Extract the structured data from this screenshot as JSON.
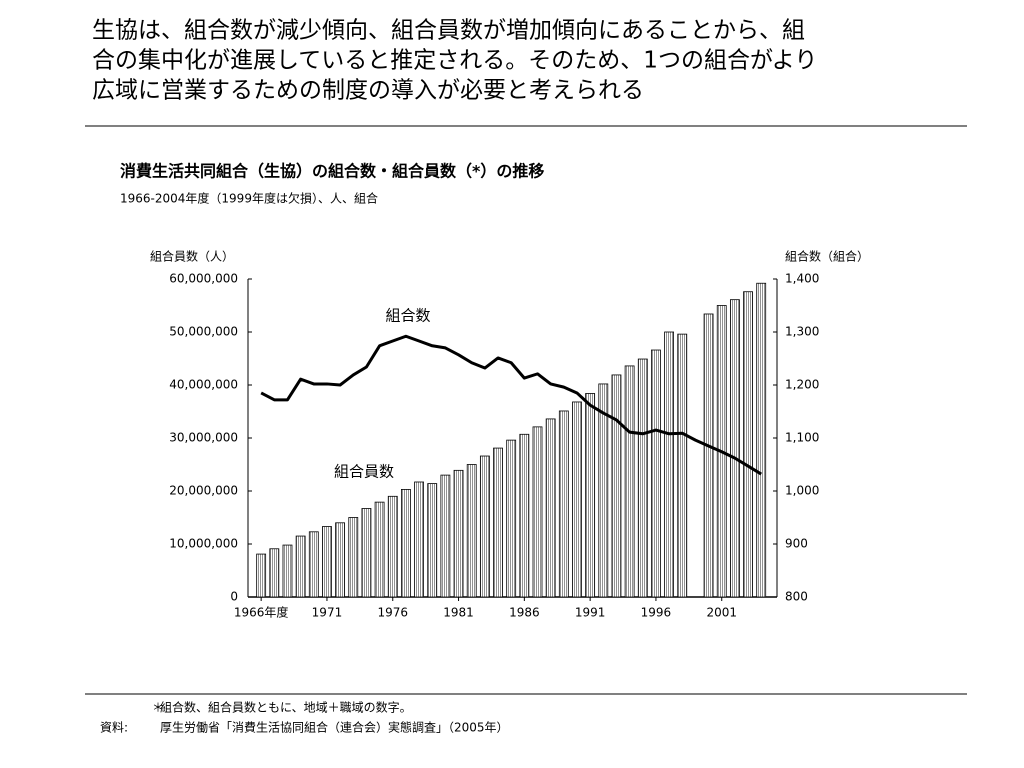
{
  "headline": [
    "生協は、組合数が減少傾向、組合員数が増加傾向にあることから、組",
    "合の集中化が進展していると推定される。そのため、1つの組合がより",
    "広域に営業するための制度の導入が必要と考えられる"
  ],
  "chart_data": {
    "type": "bar_line",
    "title": "消費生活共同組合（生協）の組合数・組合員数（*）の推移",
    "subtitle": "1966-2004年度（1999年度は欠損）、人、組合",
    "ylabel": "組合員数（人）",
    "y2label": "組合数（組合）",
    "x": [
      1966,
      1967,
      1968,
      1969,
      1970,
      1971,
      1972,
      1973,
      1974,
      1975,
      1976,
      1977,
      1978,
      1979,
      1980,
      1981,
      1982,
      1983,
      1984,
      1985,
      1986,
      1987,
      1988,
      1989,
      1990,
      1991,
      1992,
      1993,
      1994,
      1995,
      1996,
      1997,
      1998,
      1999,
      2000,
      2001,
      2002,
      2003,
      2004
    ],
    "xlim": [
      1965,
      2005.2
    ],
    "xticks": [
      {
        "value": 1966,
        "label": "1966年度"
      },
      1971,
      1976,
      1981,
      1986,
      1991,
      1996,
      2001
    ],
    "ylim": [
      0,
      60000000
    ],
    "yticks": [
      0,
      {
        "value": 10000000,
        "label": "10,000,000"
      },
      {
        "value": 20000000,
        "label": "20,000,000"
      },
      {
        "value": 30000000,
        "label": "30,000,000"
      },
      {
        "value": 40000000,
        "label": "40,000,000"
      },
      {
        "value": 50000000,
        "label": "50,000,000"
      },
      {
        "value": 60000000,
        "label": "60,000,000"
      }
    ],
    "y2lim": [
      800,
      1400
    ],
    "y2ticks": [
      800,
      900,
      {
        "value": 1000,
        "label": "1,000"
      },
      {
        "value": 1100,
        "label": "1,100"
      },
      {
        "value": 1200,
        "label": "1,200"
      },
      {
        "value": 1300,
        "label": "1,300"
      },
      {
        "value": 1400,
        "label": "1,400"
      }
    ],
    "series": [
      {
        "name": "組合員数",
        "kind": "bar",
        "color": "#000000",
        "values": [
          8100000,
          9100000,
          9800000,
          11500000,
          12300000,
          13300000,
          14000000,
          15000000,
          16700000,
          17900000,
          19000000,
          20300000,
          21700000,
          21400000,
          23000000,
          23900000,
          25000000,
          26600000,
          28100000,
          29600000,
          30700000,
          32100000,
          33600000,
          35100000,
          36800000,
          38400000,
          40200000,
          41900000,
          43600000,
          44900000,
          46600000,
          50000000,
          49600000,
          null,
          53400000,
          55000000,
          56100000,
          57600000,
          59200000
        ]
      },
      {
        "name": "組合数",
        "kind": "line",
        "axis": "y2",
        "color": "#000000",
        "values": [
          1185,
          1172,
          1172,
          1211,
          1202,
          1202,
          1200,
          1219,
          1234,
          1274,
          1283,
          1292,
          1283,
          1274,
          1270,
          1257,
          1242,
          1232,
          1251,
          1242,
          1213,
          1221,
          1202,
          1196,
          1185,
          1162,
          1147,
          1134,
          1111,
          1108,
          1115,
          1108,
          1109,
          1096,
          1085,
          1074,
          1062,
          1047,
          1032
        ]
      }
    ]
  },
  "notes": [
    {
      "mark": "＊",
      "text": "組合数、組合員数ともに、地域＋職域の数字。"
    },
    {
      "mark": "資料:",
      "text": "厚生労働省「消費生活協同組合（連合会）実態調査」（2005年）"
    }
  ]
}
